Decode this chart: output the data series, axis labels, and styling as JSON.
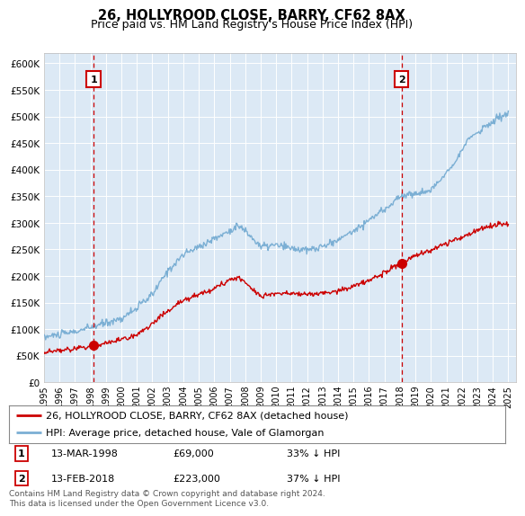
{
  "title": "26, HOLLYROOD CLOSE, BARRY, CF62 8AX",
  "subtitle": "Price paid vs. HM Land Registry's House Price Index (HPI)",
  "bg_color": "#dce9f5",
  "ylim": [
    0,
    620000
  ],
  "yticks": [
    0,
    50000,
    100000,
    150000,
    200000,
    250000,
    300000,
    350000,
    400000,
    450000,
    500000,
    550000,
    600000
  ],
  "ytick_labels": [
    "£0",
    "£50K",
    "£100K",
    "£150K",
    "£200K",
    "£250K",
    "£300K",
    "£350K",
    "£400K",
    "£450K",
    "£500K",
    "£550K",
    "£600K"
  ],
  "xlim_start": 1995.0,
  "xlim_end": 2025.5,
  "sale1_x": 1998.2,
  "sale1_y": 69000,
  "sale2_x": 2018.1,
  "sale2_y": 223000,
  "red_line_color": "#cc0000",
  "blue_line_color": "#7bafd4",
  "legend_label_red": "26, HOLLYROOD CLOSE, BARRY, CF62 8AX (detached house)",
  "legend_label_blue": "HPI: Average price, detached house, Vale of Glamorgan",
  "sale1_label": "1",
  "sale1_date": "13-MAR-1998",
  "sale1_price": "£69,000",
  "sale1_hpi": "33% ↓ HPI",
  "sale2_label": "2",
  "sale2_date": "13-FEB-2018",
  "sale2_price": "£223,000",
  "sale2_hpi": "37% ↓ HPI",
  "footnote": "Contains HM Land Registry data © Crown copyright and database right 2024.\nThis data is licensed under the Open Government Licence v3.0."
}
